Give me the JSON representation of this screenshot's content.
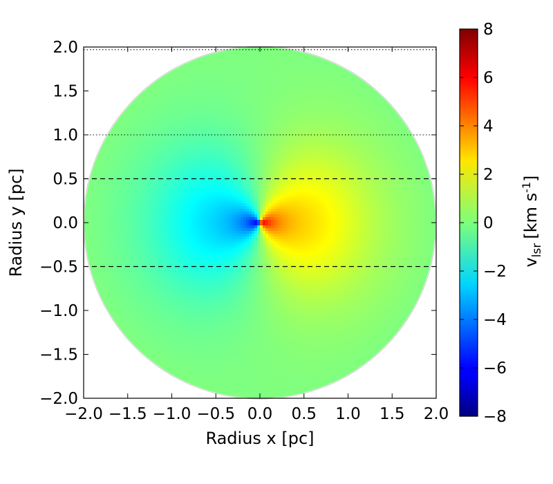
{
  "chart_data": {
    "type": "heatmap",
    "xlabel": "Radius x [pc]",
    "ylabel": "Radius y [pc]",
    "xlim": [
      -2.0,
      2.0
    ],
    "ylim": [
      -2.0,
      2.0
    ],
    "x_ticks": [
      "−2.0",
      "−1.5",
      "−1.0",
      "−0.5",
      "0.0",
      "0.5",
      "1.0",
      "1.5",
      "2.0"
    ],
    "y_ticks": [
      "−2.0",
      "−1.5",
      "−1.0",
      "−0.5",
      "0.0",
      "0.5",
      "1.0",
      "1.5",
      "2.0"
    ],
    "disk_radius": 2.0,
    "field": "line-of-sight velocity of rotating disk; v = v_max * x / r_eff, peaking near center",
    "colormap": "jet",
    "colorbar": {
      "label_main": "v",
      "label_sub": "lsr",
      "label_units_pre": "[km s",
      "label_units_sup": "-1",
      "label_units_post": "]",
      "range": [
        -8,
        8
      ],
      "ticks": [
        "8",
        "6",
        "4",
        "2",
        "0",
        "−2",
        "−4",
        "−6",
        "−8"
      ]
    },
    "reference_lines": [
      {
        "y": 1.97,
        "style": "dotted"
      },
      {
        "y": 1.0,
        "style": "dotted"
      },
      {
        "y": 0.5,
        "style": "dashed"
      },
      {
        "y": -0.5,
        "style": "dashed"
      }
    ],
    "grid": false
  }
}
